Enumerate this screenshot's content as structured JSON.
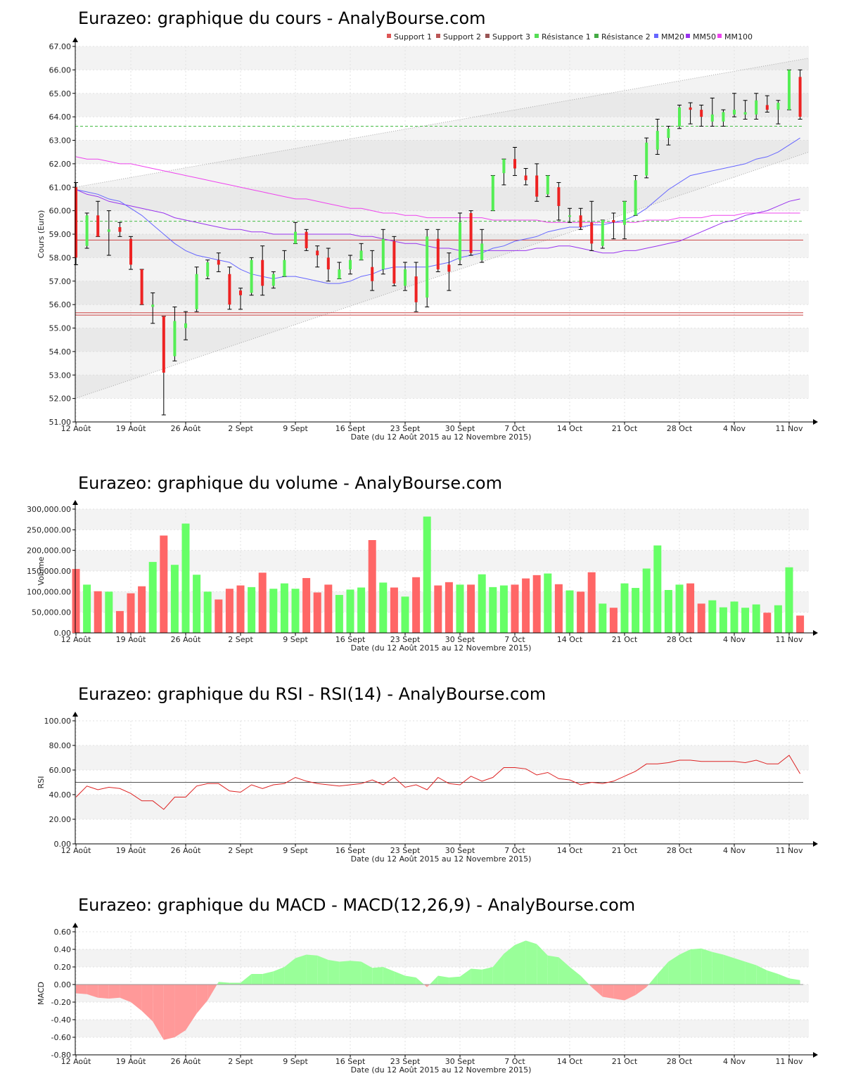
{
  "colors": {
    "up": "#55ee55",
    "down": "#ee2222",
    "wick": "#000000",
    "vol_up": "#66ff66",
    "vol_down": "#ff6666",
    "support": "#cc4444",
    "resistance": "#44bb44",
    "mm20": "#6666ff",
    "mm50": "#9933ee",
    "mm100": "#ee44ee",
    "rsi": "#dd2222",
    "macd_pos": "#99ff99",
    "macd_neg": "#ff9999",
    "band": "#aaaaaa",
    "stripe": "#f3f3f3"
  },
  "x_labels": [
    "12 Août",
    "19 Août",
    "26 Août",
    "2 Sept",
    "9 Sept",
    "16 Sept",
    "23 Sept",
    "30 Sept",
    "7 Oct",
    "14 Oct",
    "21 Oct",
    "28 Oct",
    "4 Nov",
    "11 Nov"
  ],
  "x_axis_label": "Date (du 12 Août 2015 au 12 Novembre 2015)",
  "chart_data": [
    {
      "id": "price",
      "type": "candlestick",
      "title": "Eurazeo: graphique du cours - AnalyBourse.com",
      "ylabel": "Cours (Euro)",
      "ylim": [
        51,
        67
      ],
      "yticks": [
        "51.00",
        "52.00",
        "53.00",
        "54.00",
        "55.00",
        "56.00",
        "57.00",
        "58.00",
        "59.00",
        "60.00",
        "61.00",
        "62.00",
        "63.00",
        "64.00",
        "65.00",
        "66.00",
        "67.00"
      ],
      "legend": [
        "Support 1",
        "Support 2",
        "Support 3",
        "Résistance 1",
        "Résistance 2",
        "MM20",
        "MM50",
        "MM100"
      ],
      "legend_colors": [
        "#dd5555",
        "#bb5555",
        "#995555",
        "#55dd55",
        "#44aa44",
        "#6666ff",
        "#9933ee",
        "#ee44ee"
      ],
      "support_levels": [
        58.75,
        55.65,
        55.55
      ],
      "resistance_levels": [
        63.6,
        59.55
      ],
      "channel": {
        "upper": [
          61.0,
          66.5
        ],
        "lower": [
          52.0,
          62.5
        ]
      },
      "candles": [
        [
          61.0,
          58.0,
          61.2,
          57.7
        ],
        [
          58.5,
          59.8,
          59.9,
          58.4
        ],
        [
          59.8,
          58.9,
          60.4,
          58.9
        ],
        [
          59.1,
          59.2,
          60.0,
          58.1
        ],
        [
          59.3,
          59.1,
          59.5,
          58.9
        ],
        [
          58.8,
          57.7,
          58.9,
          57.5
        ],
        [
          57.5,
          56.0,
          57.5,
          56.0
        ],
        [
          55.9,
          56.0,
          56.5,
          55.2
        ],
        [
          55.5,
          53.1,
          55.5,
          51.3
        ],
        [
          53.8,
          55.3,
          55.9,
          53.6
        ],
        [
          55.0,
          55.2,
          55.7,
          54.5
        ],
        [
          55.8,
          57.3,
          57.6,
          55.7
        ],
        [
          57.2,
          57.8,
          57.9,
          57.1
        ],
        [
          57.9,
          57.7,
          58.2,
          57.4
        ],
        [
          57.3,
          56.0,
          57.6,
          55.8
        ],
        [
          56.6,
          56.4,
          56.7,
          55.8
        ],
        [
          56.5,
          57.9,
          58.0,
          56.4
        ],
        [
          57.9,
          56.8,
          58.5,
          56.4
        ],
        [
          56.8,
          57.3,
          57.4,
          56.7
        ],
        [
          57.2,
          57.9,
          58.3,
          57.2
        ],
        [
          58.6,
          59.1,
          59.5,
          58.6
        ],
        [
          59.1,
          58.4,
          59.2,
          58.3
        ],
        [
          58.3,
          58.1,
          58.5,
          57.6
        ],
        [
          58.0,
          57.5,
          58.4,
          57.0
        ],
        [
          57.1,
          57.5,
          57.8,
          57.1
        ],
        [
          57.5,
          57.9,
          58.1,
          57.3
        ],
        [
          57.9,
          58.3,
          58.6,
          57.9
        ],
        [
          57.6,
          57.0,
          58.3,
          56.6
        ],
        [
          57.5,
          58.8,
          59.2,
          57.3
        ],
        [
          58.7,
          56.9,
          58.9,
          56.8
        ],
        [
          56.8,
          57.5,
          57.8,
          56.6
        ],
        [
          57.2,
          56.1,
          57.8,
          55.7
        ],
        [
          56.3,
          58.9,
          59.2,
          55.9
        ],
        [
          58.8,
          57.5,
          59.2,
          57.4
        ],
        [
          57.7,
          57.4,
          58.2,
          56.6
        ],
        [
          57.9,
          59.5,
          59.9,
          57.7
        ],
        [
          59.9,
          58.2,
          60.0,
          58.1
        ],
        [
          57.9,
          58.6,
          59.2,
          57.8
        ],
        [
          60.0,
          61.5,
          61.5,
          60.0
        ],
        [
          61.6,
          62.2,
          62.2,
          61.1
        ],
        [
          62.2,
          61.8,
          62.7,
          61.5
        ],
        [
          61.5,
          61.3,
          61.8,
          61.1
        ],
        [
          61.5,
          60.6,
          62.0,
          60.4
        ],
        [
          60.7,
          61.5,
          61.5,
          60.6
        ],
        [
          61.0,
          60.2,
          61.2,
          59.6
        ],
        [
          59.8,
          59.8,
          60.1,
          59.5
        ],
        [
          59.8,
          59.3,
          60.1,
          59.2
        ],
        [
          59.5,
          58.6,
          60.4,
          58.3
        ],
        [
          58.5,
          59.6,
          59.6,
          58.4
        ],
        [
          59.6,
          59.5,
          59.9,
          58.8
        ],
        [
          59.4,
          60.4,
          60.4,
          58.8
        ],
        [
          59.8,
          61.3,
          61.5,
          59.8
        ],
        [
          61.5,
          62.9,
          63.1,
          61.4
        ],
        [
          62.6,
          63.4,
          63.9,
          62.4
        ],
        [
          63.1,
          63.5,
          63.6,
          62.8
        ],
        [
          63.6,
          64.4,
          64.5,
          63.5
        ],
        [
          64.4,
          64.3,
          64.6,
          63.7
        ],
        [
          64.3,
          64.0,
          64.5,
          63.6
        ],
        [
          63.8,
          64.1,
          64.8,
          63.6
        ],
        [
          63.8,
          64.2,
          64.3,
          63.6
        ],
        [
          64.1,
          64.3,
          65.0,
          64.0
        ],
        [
          64.1,
          64.2,
          64.7,
          63.9
        ],
        [
          64.1,
          64.7,
          65.0,
          63.9
        ],
        [
          64.5,
          64.3,
          64.9,
          64.2
        ],
        [
          64.3,
          64.6,
          64.7,
          63.7
        ],
        [
          64.3,
          66.0,
          66.0,
          64.3
        ],
        [
          65.7,
          64.0,
          66.0,
          63.9
        ]
      ],
      "mm20": [
        60.9,
        60.8,
        60.7,
        60.5,
        60.4,
        60.1,
        59.8,
        59.4,
        59.0,
        58.6,
        58.3,
        58.1,
        58.0,
        57.9,
        57.8,
        57.5,
        57.3,
        57.2,
        57.1,
        57.2,
        57.2,
        57.1,
        57.0,
        56.9,
        56.9,
        57.0,
        57.2,
        57.3,
        57.5,
        57.6,
        57.6,
        57.6,
        57.6,
        57.7,
        57.8,
        58.0,
        58.1,
        58.2,
        58.4,
        58.5,
        58.7,
        58.8,
        58.9,
        59.1,
        59.2,
        59.3,
        59.3,
        59.4,
        59.4,
        59.5,
        59.6,
        59.8,
        60.1,
        60.5,
        60.9,
        61.2,
        61.5,
        61.6,
        61.7,
        61.8,
        61.9,
        62.0,
        62.2,
        62.3,
        62.5,
        62.8,
        63.1
      ],
      "mm50": [
        60.9,
        60.7,
        60.6,
        60.4,
        60.3,
        60.2,
        60.1,
        60.0,
        59.9,
        59.7,
        59.6,
        59.5,
        59.4,
        59.3,
        59.2,
        59.2,
        59.1,
        59.1,
        59.0,
        59.0,
        59.0,
        59.0,
        59.0,
        59.0,
        59.0,
        59.0,
        58.9,
        58.9,
        58.8,
        58.7,
        58.6,
        58.6,
        58.5,
        58.4,
        58.4,
        58.3,
        58.3,
        58.3,
        58.3,
        58.3,
        58.3,
        58.3,
        58.4,
        58.4,
        58.5,
        58.5,
        58.4,
        58.3,
        58.2,
        58.2,
        58.3,
        58.3,
        58.4,
        58.5,
        58.6,
        58.7,
        58.9,
        59.1,
        59.3,
        59.5,
        59.6,
        59.8,
        59.9,
        60.0,
        60.2,
        60.4,
        60.5
      ],
      "mm100": [
        62.3,
        62.2,
        62.2,
        62.1,
        62.0,
        62.0,
        61.9,
        61.8,
        61.7,
        61.6,
        61.5,
        61.4,
        61.3,
        61.2,
        61.1,
        61.0,
        60.9,
        60.8,
        60.7,
        60.6,
        60.5,
        60.5,
        60.4,
        60.3,
        60.2,
        60.1,
        60.1,
        60.0,
        59.9,
        59.9,
        59.8,
        59.8,
        59.7,
        59.7,
        59.7,
        59.7,
        59.7,
        59.7,
        59.6,
        59.6,
        59.6,
        59.6,
        59.6,
        59.5,
        59.5,
        59.5,
        59.5,
        59.5,
        59.5,
        59.5,
        59.5,
        59.5,
        59.6,
        59.6,
        59.6,
        59.7,
        59.7,
        59.7,
        59.8,
        59.8,
        59.8,
        59.9,
        59.9,
        59.9,
        59.9,
        59.9,
        59.9
      ]
    },
    {
      "id": "volume",
      "type": "bar",
      "title": "Eurazeo: graphique du volume - AnalyBourse.com",
      "ylabel": "Volume",
      "ylim": [
        0,
        300000
      ],
      "yticks": [
        "0.00",
        "50,000.00",
        "100,000.00",
        "150,000.00",
        "200,000.00",
        "250,000.00",
        "300,000.00"
      ],
      "values": [
        155000,
        117000,
        101000,
        100000,
        53000,
        96000,
        113000,
        172000,
        236000,
        165000,
        265000,
        141000,
        100000,
        81000,
        107000,
        115000,
        111000,
        146000,
        107000,
        120000,
        107000,
        133000,
        98000,
        117000,
        92000,
        105000,
        110000,
        225000,
        122000,
        110000,
        88000,
        135000,
        282000,
        115000,
        123000,
        117000,
        117000,
        142000,
        111000,
        115000,
        117000,
        132000,
        140000,
        144000,
        118000,
        103000,
        100000,
        147000,
        71000,
        61000,
        120000,
        109000,
        156000,
        212000,
        104000,
        117000,
        120000,
        71000,
        79000,
        62000,
        76000,
        61000,
        69000,
        49000,
        67000,
        159000,
        42000
      ]
    },
    {
      "id": "rsi",
      "type": "line",
      "title": "Eurazeo: graphique du RSI - RSI(14) - AnalyBourse.com",
      "ylabel": "RSI",
      "ylim": [
        0,
        100
      ],
      "yticks": [
        "0.00",
        "20.00",
        "40.00",
        "60.00",
        "80.00",
        "100.00"
      ],
      "reference": 50,
      "values": [
        38,
        47,
        44,
        46,
        45,
        41,
        35,
        35,
        28,
        38,
        38,
        47,
        49,
        49,
        43,
        42,
        48,
        45,
        48,
        49,
        54,
        51,
        49,
        48,
        47,
        48,
        49,
        52,
        48,
        54,
        46,
        48,
        44,
        54,
        49,
        48,
        55,
        51,
        54,
        62,
        62,
        61,
        56,
        58,
        53,
        52,
        48,
        50,
        49,
        51,
        55,
        59,
        65,
        65,
        66,
        68,
        68,
        67,
        67,
        67,
        67,
        66,
        68,
        65,
        65,
        72,
        57
      ]
    },
    {
      "id": "macd",
      "type": "area",
      "title": "Eurazeo: graphique du MACD - MACD(12,26,9) - AnalyBourse.com",
      "ylabel": "MACD",
      "ylim": [
        -0.8,
        0.6
      ],
      "yticks": [
        "-0.80",
        "-0.60",
        "-0.40",
        "-0.20",
        "0.00",
        "0.20",
        "0.40",
        "0.60"
      ],
      "values": [
        -0.1,
        -0.11,
        -0.15,
        -0.16,
        -0.15,
        -0.2,
        -0.3,
        -0.42,
        -0.63,
        -0.6,
        -0.52,
        -0.33,
        -0.18,
        0.03,
        0.02,
        0.02,
        0.12,
        0.12,
        0.15,
        0.2,
        0.3,
        0.34,
        0.33,
        0.28,
        0.26,
        0.27,
        0.26,
        0.19,
        0.2,
        0.15,
        0.1,
        0.08,
        -0.03,
        0.1,
        0.08,
        0.09,
        0.18,
        0.17,
        0.2,
        0.35,
        0.45,
        0.5,
        0.46,
        0.33,
        0.31,
        0.2,
        0.1,
        -0.03,
        -0.14,
        -0.16,
        -0.18,
        -0.12,
        -0.03,
        0.12,
        0.26,
        0.34,
        0.4,
        0.41,
        0.37,
        0.34,
        0.3,
        0.26,
        0.22,
        0.16,
        0.12,
        0.07,
        0.05
      ]
    }
  ]
}
